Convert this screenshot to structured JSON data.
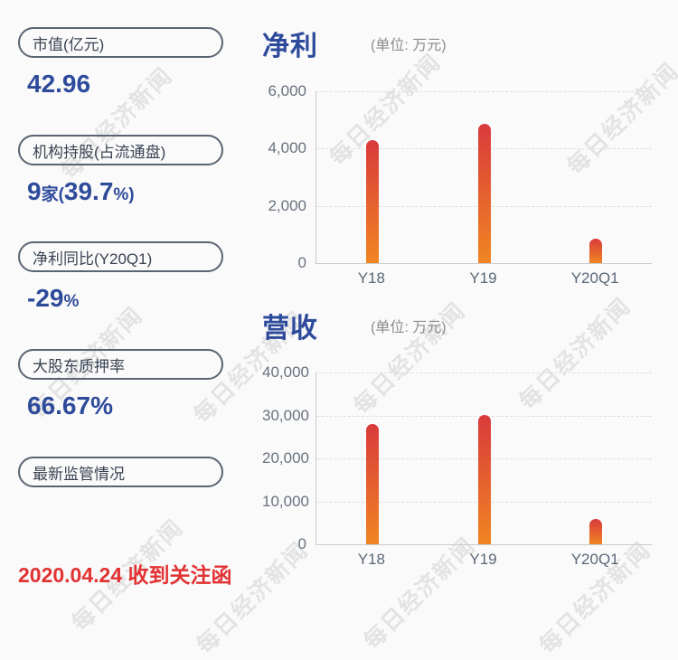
{
  "page": {
    "background": "#fafafa",
    "watermark": {
      "text": "每日经济新闻",
      "color": "#e3e3e3"
    }
  },
  "colors": {
    "accent_blue": "#2e4b9b",
    "pill_border": "#5a6472",
    "pill_label_text": "#3a4353",
    "axis_text": "#68727f",
    "alert_red": "#e23233",
    "bar_gradient_top": "#d93a3c",
    "bar_gradient_bottom": "#f08522"
  },
  "stats": [
    {
      "label": "市值(亿元)",
      "value_text": "42.96",
      "value_segments": [
        {
          "text": "42.96",
          "size": "lg"
        }
      ]
    },
    {
      "label": "机构持股(占流通盘)",
      "value_text": "9家(39.7%)",
      "value_segments": [
        {
          "text": "9",
          "size": "lg"
        },
        {
          "text": "家(",
          "size": "sm"
        },
        {
          "text": "39.7",
          "size": "lg"
        },
        {
          "text": "%)",
          "size": "sm"
        }
      ]
    },
    {
      "label": "净利同比(Y20Q1)",
      "value_text": "-29%",
      "value_segments": [
        {
          "text": "-29",
          "size": "lg"
        },
        {
          "text": "%",
          "size": "sm"
        }
      ]
    },
    {
      "label": "大股东质押率",
      "value_text": "66.67%",
      "value_segments": [
        {
          "text": "66.67%",
          "size": "lg"
        }
      ]
    },
    {
      "label": "最新监管情况",
      "value_text": "",
      "value_segments": []
    }
  ],
  "alert": {
    "text": "2020.04.24 收到关注函"
  },
  "chart_data": [
    {
      "type": "bar",
      "title": "净利",
      "unit": "(单位: 万元)",
      "categories": [
        "Y18",
        "Y19",
        "Y20Q1"
      ],
      "values": [
        4300,
        4850,
        850
      ],
      "xlabel": "",
      "ylabel": "",
      "ylim": [
        0,
        6000
      ],
      "yticks": [
        {
          "value": 0,
          "label": "0"
        },
        {
          "value": 2000,
          "label": "2,000"
        },
        {
          "value": 4000,
          "label": "4,000"
        },
        {
          "value": 6000,
          "label": "6,000"
        }
      ],
      "grid": "horizontal-dashed",
      "legend": "none"
    },
    {
      "type": "bar",
      "title": "营收",
      "unit": "(单位: 万元)",
      "categories": [
        "Y18",
        "Y19",
        "Y20Q1"
      ],
      "values": [
        27900,
        30200,
        5800
      ],
      "xlabel": "",
      "ylabel": "",
      "ylim": [
        0,
        40000
      ],
      "yticks": [
        {
          "value": 0,
          "label": "0"
        },
        {
          "value": 10000,
          "label": "10,000"
        },
        {
          "value": 20000,
          "label": "20,000"
        },
        {
          "value": 30000,
          "label": "30,000"
        },
        {
          "value": 40000,
          "label": "40,000"
        }
      ],
      "grid": "horizontal-dashed",
      "legend": "none"
    }
  ]
}
